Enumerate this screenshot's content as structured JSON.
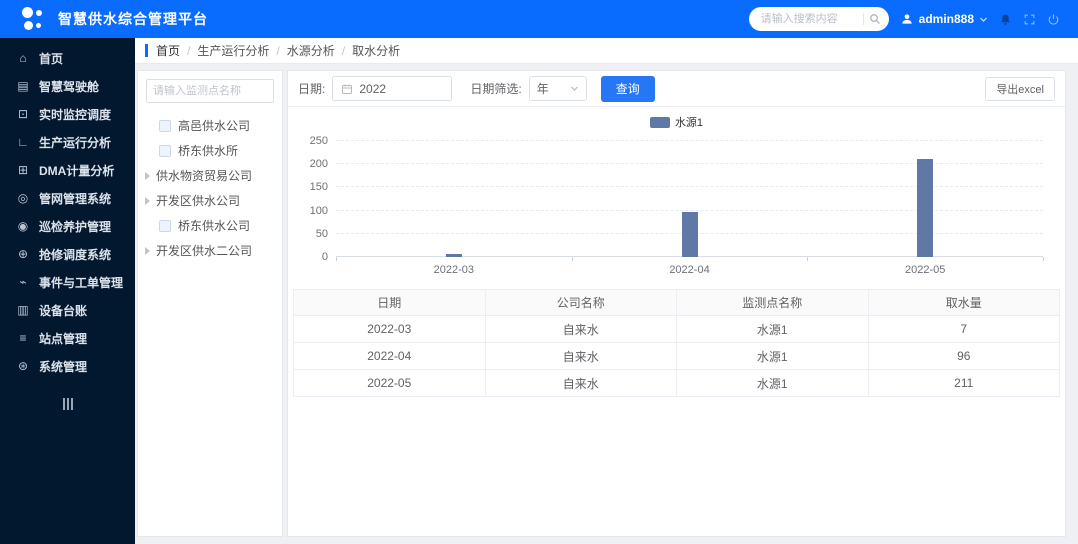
{
  "colors": {
    "header_bg": "#0a6cff",
    "sidebar_bg": "#02182e",
    "accent": "#2677f5",
    "bar": "#5f78a5"
  },
  "header": {
    "title": "智慧供水综合管理平台",
    "search_placeholder": "请输入搜索内容",
    "username": "admin888"
  },
  "sidebar": {
    "items": [
      {
        "name": "home",
        "icon": "home-icon",
        "label": "首页"
      },
      {
        "name": "smart-cockpit",
        "icon": "dashboard-icon",
        "label": "智慧驾驶舱"
      },
      {
        "name": "realtime-monitor",
        "icon": "monitor-icon",
        "label": "实时监控调度"
      },
      {
        "name": "production-analysis",
        "icon": "chart-icon",
        "label": "生产运行分析"
      },
      {
        "name": "dma-analysis",
        "icon": "meter-icon",
        "label": "DMA计量分析"
      },
      {
        "name": "pipe-network",
        "icon": "network-icon",
        "label": "管网管理系统"
      },
      {
        "name": "inspection",
        "icon": "person-icon",
        "label": "巡检养护管理"
      },
      {
        "name": "repair-dispatch",
        "icon": "wrench-icon",
        "label": "抢修调度系统"
      },
      {
        "name": "event-workorder",
        "icon": "bolt-icon",
        "label": "事件与工单管理"
      },
      {
        "name": "equipment-ledger",
        "icon": "ledger-icon",
        "label": "设备台账"
      },
      {
        "name": "station-mgmt",
        "icon": "sliders-icon",
        "label": "站点管理"
      },
      {
        "name": "system-mgmt",
        "icon": "gear-icon",
        "label": "系统管理"
      }
    ]
  },
  "breadcrumb": {
    "separator": "/",
    "items": [
      "首页",
      "生产运行分析",
      "水源分析",
      "取水分析"
    ]
  },
  "tree": {
    "search_placeholder": "请输入监测点名称",
    "items": [
      {
        "label": "高邑供水公司",
        "type": "checkbox"
      },
      {
        "label": "桥东供水所",
        "type": "checkbox"
      },
      {
        "label": "供水物资贸易公司",
        "type": "expand"
      },
      {
        "label": "开发区供水公司",
        "type": "expand"
      },
      {
        "label": "桥东供水公司",
        "type": "checkbox"
      },
      {
        "label": "开发区供水二公司",
        "type": "expand"
      }
    ]
  },
  "filters": {
    "date_label": "日期:",
    "date_value": "2022",
    "range_label": "日期筛选:",
    "range_value": "年",
    "query_button": "查询",
    "export_button": "导出excel"
  },
  "chart_data": {
    "type": "bar",
    "title": "",
    "xlabel": "",
    "ylabel": "",
    "legend": [
      "水源1"
    ],
    "legend_position": "top-center",
    "grid": true,
    "categories": [
      "2022-03",
      "2022-04",
      "2022-05"
    ],
    "series": [
      {
        "name": "水源1",
        "values": [
          7,
          96,
          211
        ],
        "color": "#5f78a5"
      }
    ],
    "ylim": [
      0,
      250
    ],
    "yticks": [
      0,
      50,
      100,
      150,
      200,
      250
    ]
  },
  "table": {
    "columns": [
      "日期",
      "公司名称",
      "监测点名称",
      "取水量"
    ],
    "rows": [
      [
        "2022-03",
        "自来水",
        "水源1",
        "7"
      ],
      [
        "2022-04",
        "自来水",
        "水源1",
        "96"
      ],
      [
        "2022-05",
        "自来水",
        "水源1",
        "211"
      ]
    ]
  }
}
